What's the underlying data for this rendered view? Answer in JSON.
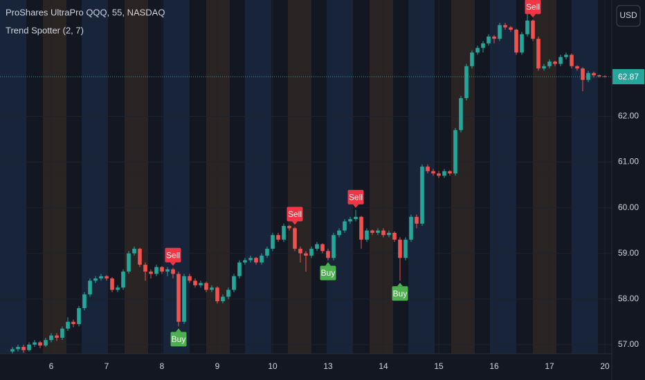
{
  "chart_data": {
    "type": "candlestick",
    "title": "ProShares UltraPro QQQ, 55, NASDAQ",
    "subtitle": "Trend Spotter (2, 7)",
    "currency_button": "USD",
    "up_color": "#26a69a",
    "down_color": "#ef5350",
    "ylim": [
      56.8,
      64.55
    ],
    "yticks": [
      {
        "value": 57,
        "label": "57.00"
      },
      {
        "value": 58,
        "label": "58.00"
      },
      {
        "value": 59,
        "label": "59.00"
      },
      {
        "value": 60,
        "label": "60.00"
      },
      {
        "value": 61,
        "label": "61.00"
      },
      {
        "value": 62,
        "label": "62.00"
      }
    ],
    "xlim": [
      -2.25,
      108.25
    ],
    "xticks": [
      {
        "value": 7,
        "label": "6"
      },
      {
        "value": 17,
        "label": "7"
      },
      {
        "value": 27,
        "label": "8"
      },
      {
        "value": 37,
        "label": "9"
      },
      {
        "value": 47,
        "label": "10"
      },
      {
        "value": 57,
        "label": "13"
      },
      {
        "value": 67,
        "label": "14"
      },
      {
        "value": 77,
        "label": "15"
      },
      {
        "value": 87,
        "label": "16"
      },
      {
        "value": 97,
        "label": "17"
      },
      {
        "value": 107,
        "label": "20"
      }
    ],
    "grid": true,
    "last_price": 62.87,
    "ohlc": [
      [
        56.85,
        56.95,
        56.8,
        56.9
      ],
      [
        56.9,
        57.0,
        56.85,
        56.95
      ],
      [
        56.95,
        57.0,
        56.82,
        56.88
      ],
      [
        56.88,
        57.05,
        56.85,
        57.0
      ],
      [
        57.0,
        57.1,
        56.95,
        57.05
      ],
      [
        57.05,
        57.08,
        56.92,
        56.98
      ],
      [
        56.98,
        57.15,
        56.95,
        57.1
      ],
      [
        57.1,
        57.25,
        57.05,
        57.2
      ],
      [
        57.2,
        57.25,
        57.08,
        57.15
      ],
      [
        57.15,
        57.4,
        57.1,
        57.35
      ],
      [
        57.35,
        57.6,
        57.3,
        57.5
      ],
      [
        57.5,
        57.55,
        57.38,
        57.45
      ],
      [
        57.45,
        57.85,
        57.4,
        57.8
      ],
      [
        57.8,
        58.15,
        57.75,
        58.1
      ],
      [
        58.1,
        58.45,
        58.05,
        58.4
      ],
      [
        58.4,
        58.5,
        58.35,
        58.45
      ],
      [
        58.45,
        58.55,
        58.4,
        58.5
      ],
      [
        58.5,
        58.52,
        58.4,
        58.45
      ],
      [
        58.45,
        58.48,
        58.15,
        58.2
      ],
      [
        58.2,
        58.3,
        58.15,
        58.25
      ],
      [
        58.25,
        58.65,
        58.2,
        58.6
      ],
      [
        58.6,
        59.05,
        58.55,
        59.0
      ],
      [
        59.0,
        59.15,
        58.95,
        59.1
      ],
      [
        59.1,
        59.12,
        58.7,
        58.75
      ],
      [
        58.75,
        58.8,
        58.4,
        58.6
      ],
      [
        58.6,
        58.65,
        58.45,
        58.55
      ],
      [
        58.55,
        58.75,
        58.5,
        58.7
      ],
      [
        58.7,
        58.72,
        58.55,
        58.6
      ],
      [
        58.6,
        58.7,
        58.5,
        58.65
      ],
      [
        58.65,
        58.68,
        58.45,
        58.55
      ],
      [
        58.55,
        58.6,
        57.4,
        57.5
      ],
      [
        57.5,
        58.55,
        57.45,
        58.5
      ],
      [
        58.5,
        58.55,
        58.35,
        58.4
      ],
      [
        58.4,
        58.45,
        58.25,
        58.3
      ],
      [
        58.3,
        58.4,
        58.25,
        58.35
      ],
      [
        58.35,
        58.38,
        58.15,
        58.2
      ],
      [
        58.2,
        58.3,
        58.15,
        58.25
      ],
      [
        58.25,
        58.28,
        57.9,
        57.95
      ],
      [
        57.95,
        58.1,
        57.9,
        58.05
      ],
      [
        58.05,
        58.25,
        58.0,
        58.2
      ],
      [
        58.2,
        58.55,
        58.15,
        58.5
      ],
      [
        58.5,
        58.85,
        58.45,
        58.8
      ],
      [
        58.8,
        58.9,
        58.75,
        58.85
      ],
      [
        58.85,
        58.95,
        58.8,
        58.9
      ],
      [
        58.9,
        58.92,
        58.75,
        58.8
      ],
      [
        58.8,
        59.0,
        58.75,
        58.95
      ],
      [
        58.95,
        59.15,
        58.9,
        59.1
      ],
      [
        59.1,
        59.45,
        59.05,
        59.4
      ],
      [
        59.4,
        59.45,
        59.25,
        59.3
      ],
      [
        59.3,
        59.65,
        59.25,
        59.6
      ],
      [
        59.6,
        59.62,
        59.5,
        59.55
      ],
      [
        59.55,
        59.58,
        59.05,
        59.1
      ],
      [
        59.1,
        59.15,
        58.8,
        59.0
      ],
      [
        59.0,
        59.05,
        58.6,
        58.95
      ],
      [
        58.95,
        59.15,
        58.9,
        59.1
      ],
      [
        59.1,
        59.25,
        59.05,
        59.2
      ],
      [
        59.2,
        59.22,
        59.0,
        59.05
      ],
      [
        59.05,
        59.1,
        58.85,
        58.9
      ],
      [
        58.9,
        59.45,
        58.85,
        59.4
      ],
      [
        59.4,
        59.55,
        59.35,
        59.5
      ],
      [
        59.5,
        59.75,
        59.45,
        59.7
      ],
      [
        59.7,
        59.8,
        59.65,
        59.75
      ],
      [
        59.75,
        59.95,
        59.7,
        59.8
      ],
      [
        59.8,
        59.82,
        59.1,
        59.3
      ],
      [
        59.3,
        59.55,
        59.25,
        59.5
      ],
      [
        59.5,
        59.52,
        59.4,
        59.45
      ],
      [
        59.45,
        59.55,
        59.4,
        59.5
      ],
      [
        59.5,
        59.55,
        59.35,
        59.4
      ],
      [
        59.4,
        59.5,
        59.35,
        59.45
      ],
      [
        59.45,
        59.48,
        59.25,
        59.3
      ],
      [
        59.3,
        59.35,
        58.4,
        58.9
      ],
      [
        58.9,
        59.35,
        58.85,
        59.3
      ],
      [
        59.3,
        59.85,
        59.25,
        59.8
      ],
      [
        59.8,
        59.85,
        59.55,
        59.65
      ],
      [
        59.65,
        60.95,
        59.6,
        60.9
      ],
      [
        60.9,
        60.95,
        60.75,
        60.8
      ],
      [
        60.8,
        60.85,
        60.7,
        60.75
      ],
      [
        60.75,
        60.8,
        60.65,
        60.7
      ],
      [
        60.7,
        60.85,
        60.65,
        60.8
      ],
      [
        60.8,
        60.82,
        60.7,
        60.75
      ],
      [
        60.75,
        61.75,
        60.7,
        61.7
      ],
      [
        61.7,
        62.45,
        61.65,
        62.4
      ],
      [
        62.4,
        63.15,
        62.35,
        63.1
      ],
      [
        63.1,
        63.45,
        63.05,
        63.4
      ],
      [
        63.4,
        63.55,
        63.35,
        63.5
      ],
      [
        63.5,
        63.65,
        63.4,
        63.6
      ],
      [
        63.6,
        63.8,
        63.55,
        63.75
      ],
      [
        63.75,
        63.78,
        63.6,
        63.7
      ],
      [
        63.7,
        64.05,
        63.65,
        64.0
      ],
      [
        64.0,
        64.05,
        63.9,
        63.95
      ],
      [
        63.95,
        63.98,
        63.85,
        63.9
      ],
      [
        63.9,
        63.92,
        63.35,
        63.4
      ],
      [
        63.4,
        63.85,
        63.35,
        63.8
      ],
      [
        63.8,
        64.25,
        63.75,
        64.1
      ],
      [
        64.1,
        64.12,
        63.65,
        63.7
      ],
      [
        63.7,
        63.75,
        63.0,
        63.05
      ],
      [
        63.05,
        63.15,
        63.0,
        63.1
      ],
      [
        63.1,
        63.25,
        63.05,
        63.2
      ],
      [
        63.2,
        63.22,
        63.1,
        63.15
      ],
      [
        63.15,
        63.35,
        63.1,
        63.3
      ],
      [
        63.3,
        63.4,
        63.25,
        63.35
      ],
      [
        63.35,
        63.38,
        63.05,
        63.1
      ],
      [
        63.1,
        63.12,
        63.0,
        63.05
      ],
      [
        63.05,
        63.08,
        62.55,
        62.8
      ],
      [
        62.8,
        63.0,
        62.75,
        62.95
      ],
      [
        62.95,
        62.98,
        62.85,
        62.9
      ],
      [
        62.9,
        62.92,
        62.85,
        62.88
      ],
      [
        62.88,
        62.9,
        62.85,
        62.87
      ]
    ],
    "signals": [
      {
        "label": "Sell",
        "bar": 29,
        "side": "above"
      },
      {
        "label": "Buy",
        "bar": 30,
        "side": "below"
      },
      {
        "label": "Sell",
        "bar": 51,
        "side": "above"
      },
      {
        "label": "Buy",
        "bar": 57,
        "side": "below"
      },
      {
        "label": "Sell",
        "bar": 62,
        "side": "above"
      },
      {
        "label": "Buy",
        "bar": 70,
        "side": "below"
      },
      {
        "label": "Sell",
        "bar": 94,
        "side": "above"
      }
    ],
    "signal_colors": {
      "Sell": "#f23645",
      "Buy": "#4caf50"
    }
  }
}
